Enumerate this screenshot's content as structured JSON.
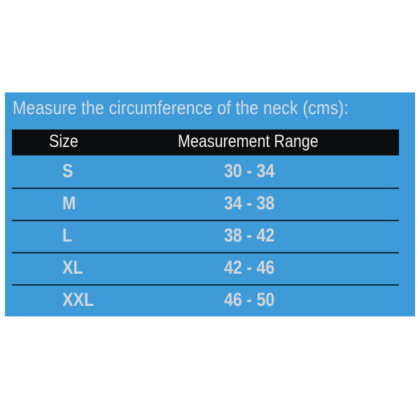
{
  "title": "Measure the circumference of the neck (cms):",
  "table": {
    "headers": [
      "Size",
      "Measurement Range"
    ],
    "rows": [
      {
        "size": "S",
        "range": "30 - 34"
      },
      {
        "size": "M",
        "range": "34 - 38"
      },
      {
        "size": "L",
        "range": "38 - 42"
      },
      {
        "size": "XL",
        "range": "42 - 46"
      },
      {
        "size": "XXL",
        "range": "46 - 50"
      }
    ]
  },
  "colors": {
    "panel": "#3f9bd8",
    "header": "#0c0d0f",
    "text": "#d4d6d8"
  }
}
